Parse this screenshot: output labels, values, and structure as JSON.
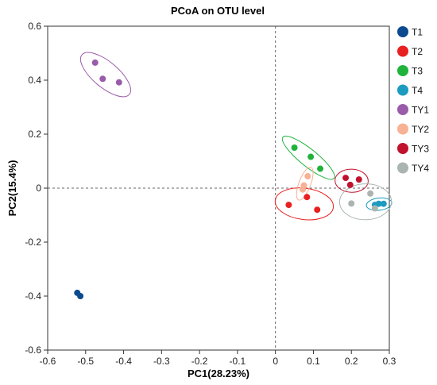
{
  "chart_data": {
    "type": "scatter",
    "title": "PCoA on OTU level",
    "xlabel": "PC1(28.23%)",
    "ylabel": "PC2(15.4%)",
    "xlim": [
      -0.6,
      0.3
    ],
    "ylim": [
      -0.6,
      0.6
    ],
    "xticks": [
      -0.6,
      -0.5,
      -0.4,
      -0.3,
      -0.2,
      -0.1,
      0,
      0.1,
      0.2,
      0.3
    ],
    "yticks": [
      -0.6,
      -0.4,
      -0.2,
      0,
      0.2,
      0.4,
      0.6
    ],
    "xtick_labels": [
      "-0.6",
      "-0.5",
      "-0.4",
      "-0.3",
      "-0.2",
      "-0.1",
      "0",
      "0.1",
      "0.2",
      "0.3"
    ],
    "ytick_labels": [
      "-0.6",
      "-0.4",
      "-0.2",
      "0",
      "0.2",
      "0.4",
      "0.6"
    ],
    "reference_lines": {
      "x": 0,
      "y": 0,
      "style": "dashed"
    },
    "grid": false,
    "legend_position": "right",
    "series": [
      {
        "name": "T1",
        "color": "#0b4a8f",
        "points": [
          [
            -0.522,
            -0.388
          ],
          [
            -0.514,
            -0.4
          ]
        ]
      },
      {
        "name": "T2",
        "color": "#e8201f",
        "points": [
          [
            0.035,
            -0.062
          ],
          [
            0.083,
            -0.033
          ],
          [
            0.11,
            -0.08
          ]
        ]
      },
      {
        "name": "T3",
        "color": "#1fb33c",
        "points": [
          [
            0.05,
            0.15
          ],
          [
            0.093,
            0.116
          ],
          [
            0.118,
            0.072
          ]
        ]
      },
      {
        "name": "T4",
        "color": "#1b9bbf",
        "points": [
          [
            0.262,
            -0.062
          ],
          [
            0.272,
            -0.058
          ],
          [
            0.285,
            -0.058
          ]
        ]
      },
      {
        "name": "TY1",
        "color": "#9a5caa",
        "points": [
          [
            -0.475,
            0.465
          ],
          [
            -0.455,
            0.405
          ],
          [
            -0.412,
            0.392
          ]
        ]
      },
      {
        "name": "TY2",
        "color": "#f7b194",
        "points": [
          [
            0.072,
            -0.005
          ],
          [
            0.075,
            0.01
          ],
          [
            0.085,
            0.044
          ]
        ]
      },
      {
        "name": "TY3",
        "color": "#c0122d",
        "points": [
          [
            0.185,
            0.038
          ],
          [
            0.197,
            0.012
          ],
          [
            0.22,
            0.032
          ]
        ]
      },
      {
        "name": "TY4",
        "color": "#abb5b0",
        "points": [
          [
            0.2,
            -0.057
          ],
          [
            0.25,
            -0.02
          ],
          [
            0.262,
            -0.075
          ]
        ]
      }
    ]
  }
}
